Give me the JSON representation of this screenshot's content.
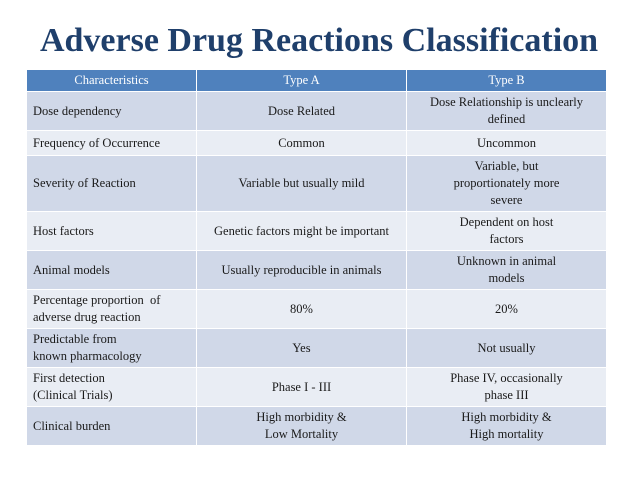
{
  "title": "Adverse Drug Reactions Classification",
  "table": {
    "headers": [
      "Characteristics",
      "Type A",
      "Type B"
    ],
    "rows": [
      {
        "c": [
          "Dose dependency"
        ],
        "a": [
          "Dose Related"
        ],
        "b": [
          "Dose Relationship is unclearly",
          "defined"
        ]
      },
      {
        "c": [
          "Frequency of Occurrence"
        ],
        "a": [
          "Common"
        ],
        "b": [
          "Uncommon"
        ]
      },
      {
        "c": [
          "Severity of Reaction"
        ],
        "a": [
          "Variable but usually mild"
        ],
        "b": [
          "Variable, but",
          "proportionately more",
          "severe"
        ]
      },
      {
        "c": [
          "Host factors"
        ],
        "a": [
          "Genetic factors might be important"
        ],
        "b": [
          "Dependent on host",
          "factors"
        ]
      },
      {
        "c": [
          "Animal models"
        ],
        "a": [
          "Usually reproducible in animals"
        ],
        "b": [
          "Unknown in animal",
          "models"
        ]
      },
      {
        "c": [
          "Percentage proportion  of",
          "adverse drug reaction"
        ],
        "a": [
          "80%"
        ],
        "b": [
          "20%"
        ]
      },
      {
        "c": [
          "Predictable from",
          "known pharmacology"
        ],
        "a": [
          "Yes"
        ],
        "b": [
          "Not usually"
        ]
      },
      {
        "c": [
          "First detection",
          "(Clinical Trials)"
        ],
        "a": [
          "Phase I - III"
        ],
        "b": [
          "Phase IV, occasionally",
          "phase III"
        ]
      },
      {
        "c": [
          "Clinical burden"
        ],
        "a": [
          "High morbidity &",
          "Low Mortality"
        ],
        "b": [
          "High morbidity &",
          "High mortality"
        ]
      }
    ]
  }
}
